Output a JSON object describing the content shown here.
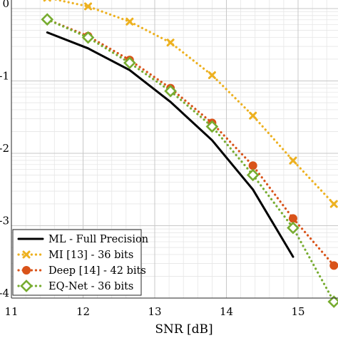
{
  "chart_data": {
    "type": "line",
    "xlabel": "SNR [dB]",
    "ylabel": "",
    "xlim": [
      11,
      15.6
    ],
    "ylim": [
      -4,
      0
    ],
    "yscale": "log10 (tick labels show exponent fragments)",
    "grid": "major and minor",
    "legend_position": "bottom-left",
    "x_ticks": [
      "11",
      "12",
      "13",
      "14",
      "15"
    ],
    "y_ticks": [
      "0",
      "-1",
      "-2",
      "-3",
      "-4"
    ],
    "series": [
      {
        "name": "ML - Full Precision",
        "color": "#000000",
        "style": "solid",
        "marker": "none",
        "x": [
          11.5,
          12.07,
          12.65,
          13.22,
          13.8,
          14.37,
          14.93
        ],
        "y": [
          -0.33,
          -0.55,
          -0.85,
          -1.29,
          -1.82,
          -2.5,
          -3.43
        ]
      },
      {
        "name": "MI [13] - 36 bits",
        "color": "#EDB120",
        "style": "dotted",
        "marker": "x",
        "x": [
          11.5,
          12.07,
          12.65,
          13.22,
          13.8,
          14.37,
          14.93,
          15.5
        ],
        "y": [
          0.15,
          0.03,
          -0.18,
          -0.47,
          -0.92,
          -1.48,
          -2.1,
          -2.7
        ]
      },
      {
        "name": "Deep [14] - 42 bits",
        "color": "#D95319",
        "style": "dotted",
        "marker": "circle",
        "x": [
          11.5,
          12.07,
          12.65,
          13.22,
          13.8,
          14.37,
          14.93,
          15.5
        ],
        "y": [
          -0.15,
          -0.38,
          -0.71,
          -1.1,
          -1.58,
          -2.17,
          -2.9,
          -3.55
        ]
      },
      {
        "name": "EQ-Net - 36 bits",
        "color": "#77AC30",
        "style": "dotted",
        "marker": "diamond",
        "x": [
          11.5,
          12.07,
          12.65,
          13.22,
          13.8,
          14.37,
          14.93,
          15.5
        ],
        "y": [
          -0.15,
          -0.4,
          -0.75,
          -1.14,
          -1.63,
          -2.3,
          -3.03,
          -4.05
        ]
      }
    ]
  }
}
